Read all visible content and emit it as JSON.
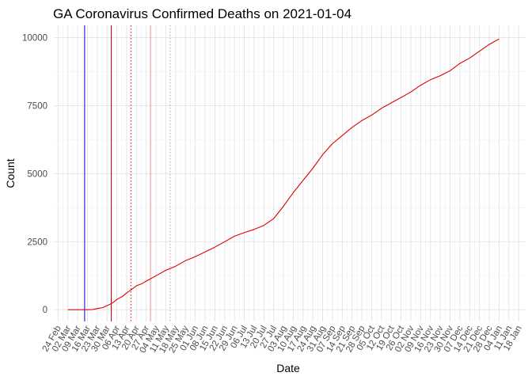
{
  "chart_data": {
    "type": "line",
    "title": "GA Coronavirus Confirmed Deaths on 2021-01-04",
    "xlabel": "Date",
    "ylabel": "Count",
    "x_ticks": [
      "24 Feb",
      "02 Mar",
      "09 Mar",
      "16 Mar",
      "23 Mar",
      "30 Mar",
      "06 Apr",
      "13 Apr",
      "20 Apr",
      "27 Apr",
      "04 May",
      "11 May",
      "18 May",
      "25 May",
      "01 Jun",
      "08 Jun",
      "15 Jun",
      "22 Jun",
      "29 Jun",
      "06 Jul",
      "13 Jul",
      "20 Jul",
      "27 Jul",
      "03 Aug",
      "10 Aug",
      "17 Aug",
      "24 Aug",
      "31 Aug",
      "07 Sep",
      "14 Sep",
      "21 Sep",
      "28 Sep",
      "05 Oct",
      "12 Oct",
      "19 Oct",
      "26 Oct",
      "02 Nov",
      "09 Nov",
      "16 Nov",
      "23 Nov",
      "30 Nov",
      "07 Dec",
      "14 Dec",
      "21 Dec",
      "28 Dec",
      "04 Jan",
      "11 Jan",
      "18 Jan"
    ],
    "y_ticks": [
      "0",
      "2500",
      "5000",
      "7500",
      "10000"
    ],
    "y_tick_values": [
      0,
      2500,
      5000,
      7500,
      10000
    ],
    "xlim_days": [
      -3,
      334
    ],
    "ylim": [
      -430,
      10450
    ],
    "grid": true,
    "line_color": "#dd0000",
    "series": [
      {
        "x": [
          "02 Mar",
          "09 Mar",
          "16 Mar",
          "20 Mar",
          "23 Mar",
          "27 Mar",
          "30 Mar",
          "03 Apr",
          "06 Apr",
          "10 Apr",
          "13 Apr",
          "17 Apr",
          "20 Apr",
          "24 Apr",
          "27 Apr",
          "04 May",
          "11 May",
          "18 May",
          "25 May",
          "01 Jun",
          "08 Jun",
          "15 Jun",
          "22 Jun",
          "29 Jun",
          "06 Jul",
          "13 Jul",
          "20 Jul",
          "27 Jul",
          "03 Aug",
          "10 Aug",
          "17 Aug",
          "24 Aug",
          "31 Aug",
          "07 Sep",
          "14 Sep",
          "21 Sep",
          "28 Sep",
          "05 Oct",
          "12 Oct",
          "19 Oct",
          "26 Oct",
          "02 Nov",
          "09 Nov",
          "16 Nov",
          "23 Nov",
          "30 Nov",
          "07 Dec",
          "14 Dec",
          "21 Dec",
          "28 Dec",
          "04 Jan"
        ],
        "y": [
          0,
          0,
          0,
          10,
          40,
          80,
          150,
          250,
          380,
          490,
          620,
          760,
          880,
          960,
          1050,
          1250,
          1450,
          1600,
          1800,
          1950,
          2120,
          2300,
          2500,
          2700,
          2830,
          2950,
          3100,
          3350,
          3800,
          4300,
          4750,
          5200,
          5700,
          6100,
          6400,
          6700,
          6950,
          7150,
          7400,
          7600,
          7800,
          8000,
          8250,
          8450,
          8600,
          8780,
          9050,
          9250,
          9500,
          9750,
          9950
        ]
      }
    ],
    "reference_lines": [
      {
        "x": "14 Mar",
        "color": "#0000cc",
        "style": "solid"
      },
      {
        "x": "02 Apr",
        "color": "#dd0000",
        "style": "solid"
      },
      {
        "x": "16 Apr",
        "color": "#dd0000",
        "style": "dotted"
      },
      {
        "x": "30 Apr",
        "color": "#ee9999",
        "style": "solid"
      },
      {
        "x": "14 May",
        "color": "#ee9999",
        "style": "dotted"
      }
    ]
  }
}
